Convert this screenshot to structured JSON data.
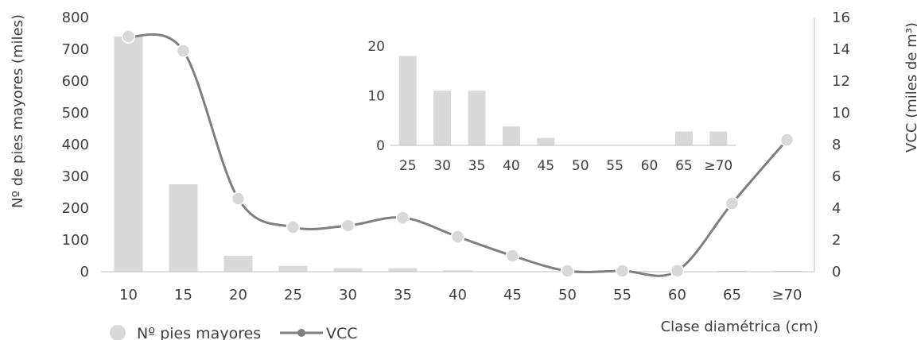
{
  "chart_data": [
    {
      "type": "bar+line",
      "categories": [
        "10",
        "15",
        "20",
        "25",
        "30",
        "35",
        "40",
        "45",
        "50",
        "55",
        "60",
        "65",
        "≥70"
      ],
      "series": [
        {
          "name": "Nº pies mayores",
          "type": "bar",
          "axis": "left",
          "color": "#d9d9d9",
          "values": [
            740,
            275,
            50,
            18,
            11,
            11,
            4,
            1,
            0,
            0,
            0,
            3,
            3
          ]
        },
        {
          "name": "VCC",
          "type": "line",
          "axis": "right",
          "color": "#7f7f7f",
          "marker_color": "#d9d9d9",
          "values": [
            14.8,
            13.9,
            4.6,
            2.8,
            2.9,
            3.4,
            2.2,
            1.0,
            0.05,
            0.05,
            0.05,
            4.3,
            8.3
          ]
        }
      ],
      "xlabel": "Clase diamétrica (cm)",
      "ylabel": "Nº de pies mayores (miles)",
      "y2label": "VCC (miles de m³)",
      "ylim": [
        0,
        800
      ],
      "yticks": [
        "0",
        "100",
        "200",
        "300",
        "400",
        "500",
        "600",
        "700",
        "800"
      ],
      "y2lim": [
        0,
        16
      ],
      "y2ticks": [
        "0",
        "2",
        "4",
        "6",
        "8",
        "10",
        "12",
        "14",
        "16"
      ],
      "legend": {
        "placement": "bottom-left",
        "entries": [
          "Nº pies mayores",
          "VCC"
        ]
      },
      "grid": false
    },
    {
      "type": "bar",
      "role": "inset",
      "categories": [
        "25",
        "30",
        "35",
        "40",
        "45",
        "50",
        "55",
        "60",
        "65",
        "≥70"
      ],
      "values": [
        18,
        11,
        11,
        3.8,
        1.5,
        0,
        0,
        0,
        2.8,
        2.8
      ],
      "color": "#d9d9d9",
      "ylim": [
        0,
        20
      ],
      "yticks": [
        "0",
        "10",
        "20"
      ],
      "grid": false
    }
  ]
}
